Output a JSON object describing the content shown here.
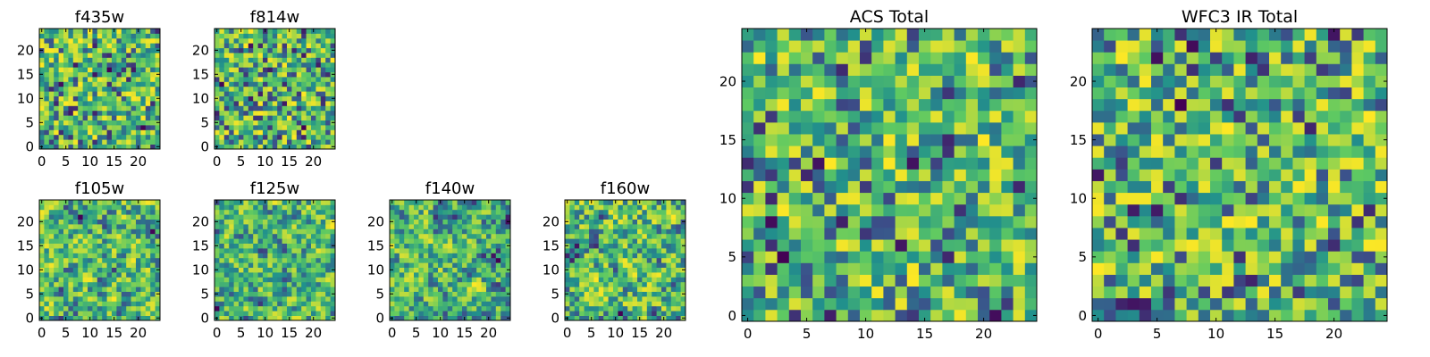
{
  "chart_data": [
    {
      "type": "heatmap",
      "title": "f435w",
      "xlim": [
        -0.5,
        24.5
      ],
      "ylim": [
        -0.5,
        24.5
      ],
      "x_ticks": [
        0,
        5,
        10,
        15,
        20
      ],
      "y_ticks": [
        0,
        5,
        10,
        15,
        20
      ],
      "grid_size": 25,
      "values_note": "",
      "seed": 11,
      "smooth": 0
    },
    {
      "type": "heatmap",
      "title": "f814w",
      "xlim": [
        -0.5,
        24.5
      ],
      "ylim": [
        -0.5,
        24.5
      ],
      "x_ticks": [
        0,
        5,
        10,
        15,
        20
      ],
      "y_ticks": [
        0,
        5,
        10,
        15,
        20
      ],
      "grid_size": 25,
      "values_note": "",
      "seed": 23,
      "smooth": 0
    },
    {
      "type": "heatmap",
      "title": "f105w",
      "xlim": [
        -0.5,
        24.5
      ],
      "ylim": [
        -0.5,
        24.5
      ],
      "x_ticks": [
        0,
        5,
        10,
        15,
        20
      ],
      "y_ticks": [
        0,
        5,
        10,
        15,
        20
      ],
      "grid_size": 25,
      "values_note": "",
      "seed": 37,
      "smooth": 1
    },
    {
      "type": "heatmap",
      "title": "f125w",
      "xlim": [
        -0.5,
        24.5
      ],
      "ylim": [
        -0.5,
        24.5
      ],
      "x_ticks": [
        0,
        5,
        10,
        15,
        20
      ],
      "y_ticks": [
        0,
        5,
        10,
        15,
        20
      ],
      "grid_size": 25,
      "values_note": "",
      "seed": 41,
      "smooth": 1
    },
    {
      "type": "heatmap",
      "title": "f140w",
      "xlim": [
        -0.5,
        24.5
      ],
      "ylim": [
        -0.5,
        24.5
      ],
      "x_ticks": [
        0,
        5,
        10,
        15,
        20
      ],
      "y_ticks": [
        0,
        5,
        10,
        15,
        20
      ],
      "grid_size": 25,
      "values_note": "",
      "seed": 53,
      "smooth": 1
    },
    {
      "type": "heatmap",
      "title": "f160w",
      "xlim": [
        -0.5,
        24.5
      ],
      "ylim": [
        -0.5,
        24.5
      ],
      "x_ticks": [
        0,
        5,
        10,
        15,
        20
      ],
      "y_ticks": [
        0,
        5,
        10,
        15,
        20
      ],
      "grid_size": 25,
      "values_note": "",
      "seed": 67,
      "smooth": 1
    },
    {
      "type": "heatmap",
      "title": "ACS Total",
      "xlim": [
        -0.5,
        24.5
      ],
      "ylim": [
        -0.5,
        24.5
      ],
      "x_ticks": [
        0,
        5,
        10,
        15,
        20
      ],
      "y_ticks": [
        0,
        5,
        10,
        15,
        20
      ],
      "grid_size": 25,
      "values_note": "",
      "seed": 79,
      "smooth": 0
    },
    {
      "type": "heatmap",
      "title": "WFC3 IR Total",
      "xlim": [
        -0.5,
        24.5
      ],
      "ylim": [
        -0.5,
        24.5
      ],
      "x_ticks": [
        0,
        5,
        10,
        15,
        20
      ],
      "y_ticks": [
        0,
        5,
        10,
        15,
        20
      ],
      "grid_size": 25,
      "values_note": "",
      "seed": 97,
      "smooth": 0
    }
  ],
  "colormap": {
    "name": "viridis",
    "stops": [
      "#440154",
      "#3b528b",
      "#21918c",
      "#5ec962",
      "#fde725"
    ]
  },
  "colors": {
    "frame": "#000000",
    "background": "#ffffff"
  }
}
